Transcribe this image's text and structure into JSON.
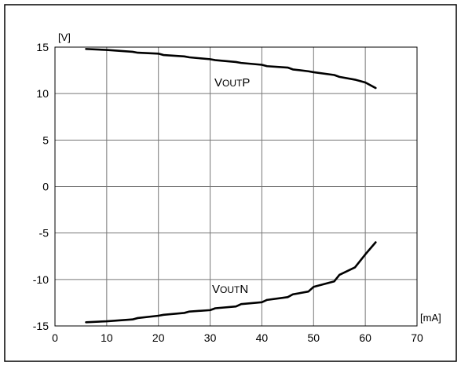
{
  "chart_data": {
    "type": "line",
    "title": "",
    "xlabel": "",
    "ylabel": "",
    "x_unit": "[mA]",
    "y_unit": "[V]",
    "xlim": [
      0,
      70
    ],
    "ylim": [
      -15,
      15
    ],
    "x_ticks": [
      "0",
      "10",
      "20",
      "30",
      "40",
      "50",
      "60",
      "70"
    ],
    "y_ticks": [
      "15",
      "10",
      "5",
      "0",
      "-5",
      "-10",
      "-15"
    ],
    "grid": true,
    "legend": "none",
    "line_color": "#000000",
    "series": [
      {
        "label_main": "V",
        "label_sub": "OUT",
        "label_suffix": "P",
        "x": [
          6,
          10,
          15,
          16,
          20,
          21,
          25,
          26,
          30,
          31,
          35,
          36,
          40,
          41,
          45,
          46,
          49,
          50,
          54,
          55,
          58,
          60,
          62
        ],
        "y": [
          14.8,
          14.7,
          14.5,
          14.4,
          14.3,
          14.15,
          14.0,
          13.9,
          13.7,
          13.6,
          13.4,
          13.3,
          13.1,
          12.95,
          12.8,
          12.6,
          12.4,
          12.3,
          12.0,
          11.8,
          11.5,
          11.2,
          10.6
        ]
      },
      {
        "label_main": "V",
        "label_sub": "OUT",
        "label_suffix": "N",
        "x": [
          6,
          10,
          15,
          16,
          20,
          21,
          25,
          26,
          30,
          31,
          35,
          36,
          40,
          41,
          45,
          46,
          49,
          50,
          54,
          55,
          58,
          60,
          62
        ],
        "y": [
          -14.6,
          -14.5,
          -14.3,
          -14.15,
          -13.9,
          -13.8,
          -13.6,
          -13.45,
          -13.3,
          -13.1,
          -12.9,
          -12.65,
          -12.45,
          -12.2,
          -11.9,
          -11.6,
          -11.3,
          -10.8,
          -10.2,
          -9.5,
          -8.7,
          -7.3,
          -6.0
        ]
      }
    ]
  }
}
